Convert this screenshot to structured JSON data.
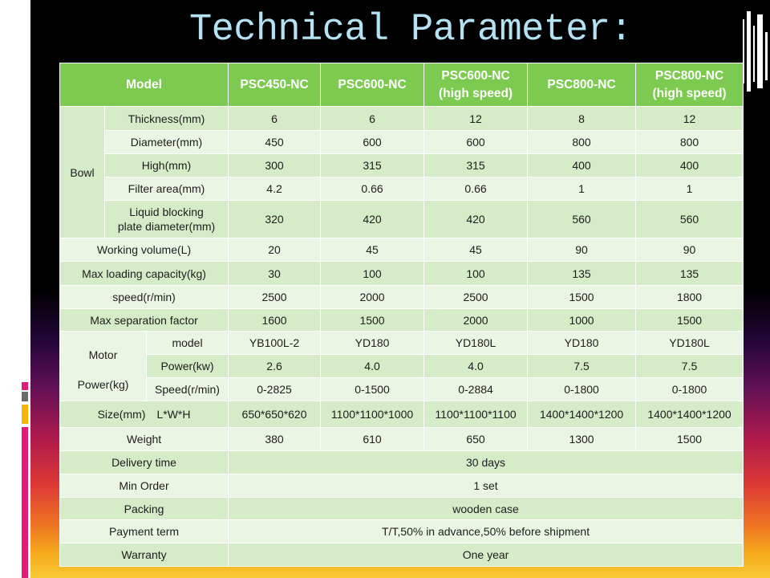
{
  "title": "Technical Parameter:",
  "theme": {
    "title_color": "#b3e2f3",
    "header_bg": "#7ccb50",
    "band_dark": "#d6ebc8",
    "band_light": "#ebf5e4"
  },
  "table": {
    "header": {
      "model_label": "Model",
      "models": [
        [
          "PSC450-NC"
        ],
        [
          "PSC600-NC"
        ],
        [
          "PSC600-NC",
          "(high speed)"
        ],
        [
          "PSC800-NC"
        ],
        [
          "PSC800-NC",
          "(high speed)"
        ]
      ]
    },
    "bowl": {
      "label": "Bowl",
      "rows": [
        {
          "label": "Thickness(mm)",
          "values": [
            "6",
            "6",
            "12",
            "8",
            "12"
          ]
        },
        {
          "label": "Diameter(mm)",
          "values": [
            "450",
            "600",
            "600",
            "800",
            "800"
          ]
        },
        {
          "label": "High(mm)",
          "values": [
            "300",
            "315",
            "315",
            "400",
            "400"
          ]
        },
        {
          "label": "Filter area(mm)",
          "values": [
            "4.2",
            "0.66",
            "0.66",
            "1",
            "1"
          ]
        },
        {
          "label_lines": [
            "Liquid blocking",
            "plate diameter(mm)"
          ],
          "values": [
            "320",
            "420",
            "420",
            "560",
            "560"
          ]
        }
      ]
    },
    "general_1": [
      {
        "label": "Working volume(L)",
        "values": [
          "20",
          "45",
          "45",
          "90",
          "90"
        ]
      },
      {
        "label": "Max loading capacity(kg)",
        "values": [
          "30",
          "100",
          "100",
          "135",
          "135"
        ]
      },
      {
        "label": "speed(r/min)",
        "values": [
          "2500",
          "2000",
          "2500",
          "1500",
          "1800"
        ]
      },
      {
        "label": "Max separation factor",
        "values": [
          "1600",
          "1500",
          "2000",
          "1000",
          "1500"
        ]
      }
    ],
    "motor": {
      "label_lines": [
        "Motor",
        "Power(kg)"
      ],
      "rows": [
        {
          "label": "model",
          "values": [
            "YB100L-2",
            "YD180",
            "YD180L",
            "YD180",
            "YD180L"
          ]
        },
        {
          "label": "Power(kw)",
          "values": [
            "2.6",
            "4.0",
            "4.0",
            "7.5",
            "7.5"
          ]
        },
        {
          "label": "Speed(r/min)",
          "values": [
            "0-2825",
            "0-1500",
            "0-2884",
            "0-1800",
            "0-1800"
          ]
        }
      ]
    },
    "general_2": [
      {
        "label_parts": [
          "Size(mm)",
          "L*W*H"
        ],
        "values": [
          "650*650*620",
          "1100*1100*1000",
          "1100*1100*1100",
          "1400*1400*1200",
          "1400*1400*1200"
        ]
      },
      {
        "label": "Weight",
        "values": [
          "380",
          "610",
          "650",
          "1300",
          "1500"
        ]
      }
    ],
    "terms": [
      {
        "label": "Delivery time",
        "value": "30 days"
      },
      {
        "label": "Min Order",
        "value": "1 set"
      },
      {
        "label": "Packing",
        "value": "wooden case"
      },
      {
        "label": "Payment term",
        "value": "T/T,50% in advance,50% before shipment"
      },
      {
        "label": "Warranty",
        "value": "One year"
      }
    ]
  }
}
